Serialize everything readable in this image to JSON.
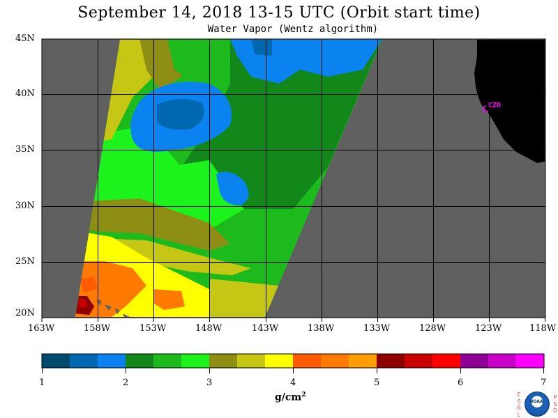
{
  "header": {
    "title": "September 14, 2018  13-15 UTC  (Orbit start time)",
    "subtitle": "Water Vapor (Wentz algorithm)"
  },
  "map": {
    "lat_labels": [
      "45N",
      "40N",
      "35N",
      "30N",
      "25N",
      "20N"
    ],
    "lon_labels": [
      "163W",
      "158W",
      "153W",
      "148W",
      "143W",
      "138W",
      "133W",
      "128W",
      "123W",
      "118W"
    ],
    "station_label": "CZD",
    "colors": {
      "ocean_nodata": "#606060",
      "land": "#000000",
      "grid": "#000000",
      "station": "#ff00ff"
    }
  },
  "colorbar": {
    "ticks": [
      "1",
      "2",
      "3",
      "4",
      "5",
      "6",
      "7"
    ],
    "units_base": "g/cm",
    "units_exp": "2",
    "colors": [
      "#004a6e",
      "#0068b0",
      "#0a82f0",
      "#12881a",
      "#1cba1c",
      "#1cf21c",
      "#8e8e14",
      "#c6c614",
      "#ffff00",
      "#ff5a00",
      "#ff7a00",
      "#ff9e00",
      "#8e0000",
      "#c80000",
      "#ff0000",
      "#8e0094",
      "#c800c8",
      "#ff00ff"
    ]
  },
  "logo": {
    "left_letters": [
      "E",
      "S",
      "R",
      "L"
    ],
    "right_letters": [
      "P",
      "S",
      "D"
    ],
    "text": "NOAA"
  }
}
